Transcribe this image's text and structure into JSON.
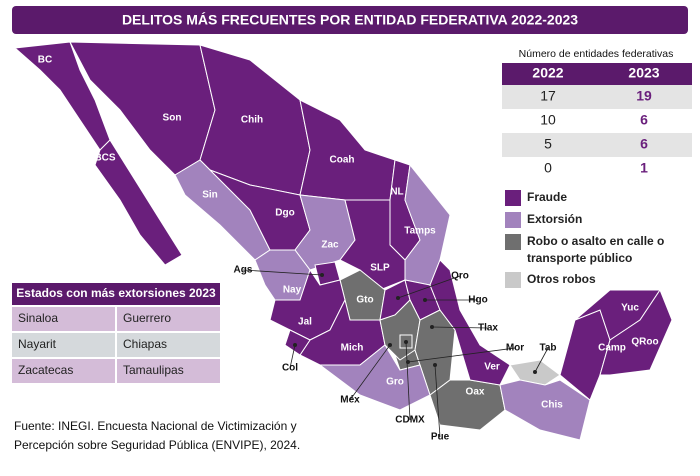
{
  "title": "DELITOS MÁS FRECUENTES POR ENTIDAD FEDERATIVA 2022-2023",
  "count_table": {
    "caption": "Número de entidades federativas",
    "headers": [
      "2022",
      "2023"
    ],
    "rows": [
      [
        17,
        19
      ],
      [
        10,
        6
      ],
      [
        5,
        6
      ],
      [
        0,
        1
      ]
    ]
  },
  "legend": [
    {
      "name": "Fraude",
      "color": "#6a1f7c"
    },
    {
      "name": "Extorsión",
      "color": "#a283bd"
    },
    {
      "name": "Robo o asalto en calle o transporte público",
      "color": "#6f6f6f"
    },
    {
      "name": "Otros robos",
      "color": "#c9c9c9"
    }
  ],
  "extortion_table": {
    "title": "Estados con más extorsiones 2023",
    "rows": [
      [
        "Sinaloa",
        "Guerrero"
      ],
      [
        "Nayarit",
        "Chiapas"
      ],
      [
        "Zacatecas",
        "Tamaulipas"
      ]
    ]
  },
  "states": [
    {
      "label": "BC",
      "crime": 0
    },
    {
      "label": "BCS",
      "crime": 0
    },
    {
      "label": "Son",
      "crime": 0
    },
    {
      "label": "Chih",
      "crime": 0
    },
    {
      "label": "Coah",
      "crime": 0
    },
    {
      "label": "NL",
      "crime": 0
    },
    {
      "label": "Tamps",
      "crime": 1
    },
    {
      "label": "Sin",
      "crime": 1
    },
    {
      "label": "Dgo",
      "crime": 0
    },
    {
      "label": "Zac",
      "crime": 1
    },
    {
      "label": "SLP",
      "crime": 0
    },
    {
      "label": "Ags",
      "crime": 0
    },
    {
      "label": "Nay",
      "crime": 1
    },
    {
      "label": "Gto",
      "crime": 2
    },
    {
      "label": "Qro",
      "crime": 0
    },
    {
      "label": "Hgo",
      "crime": 0
    },
    {
      "label": "Jal",
      "crime": 0
    },
    {
      "label": "Tlax",
      "crime": 0
    },
    {
      "label": "Mich",
      "crime": 0
    },
    {
      "label": "Col",
      "crime": 0
    },
    {
      "label": "Mor",
      "crime": 2
    },
    {
      "label": "Méx",
      "crime": 2
    },
    {
      "label": "CDMX",
      "crime": 2
    },
    {
      "label": "Pue",
      "crime": 2
    },
    {
      "label": "Gro",
      "crime": 1
    },
    {
      "label": "Oax",
      "crime": 2
    },
    {
      "label": "Tab",
      "crime": 3
    },
    {
      "label": "Chis",
      "crime": 1
    },
    {
      "label": "Ver",
      "crime": 0
    },
    {
      "label": "Camp",
      "crime": 0
    },
    {
      "label": "Yuc",
      "crime": 0
    },
    {
      "label": "QRoo",
      "crime": 0
    }
  ],
  "source": "Fuente: INEGI. Encuesta Nacional de Victimización y Percepción sobre Seguridad Pública (ENVIPE), 2024."
}
